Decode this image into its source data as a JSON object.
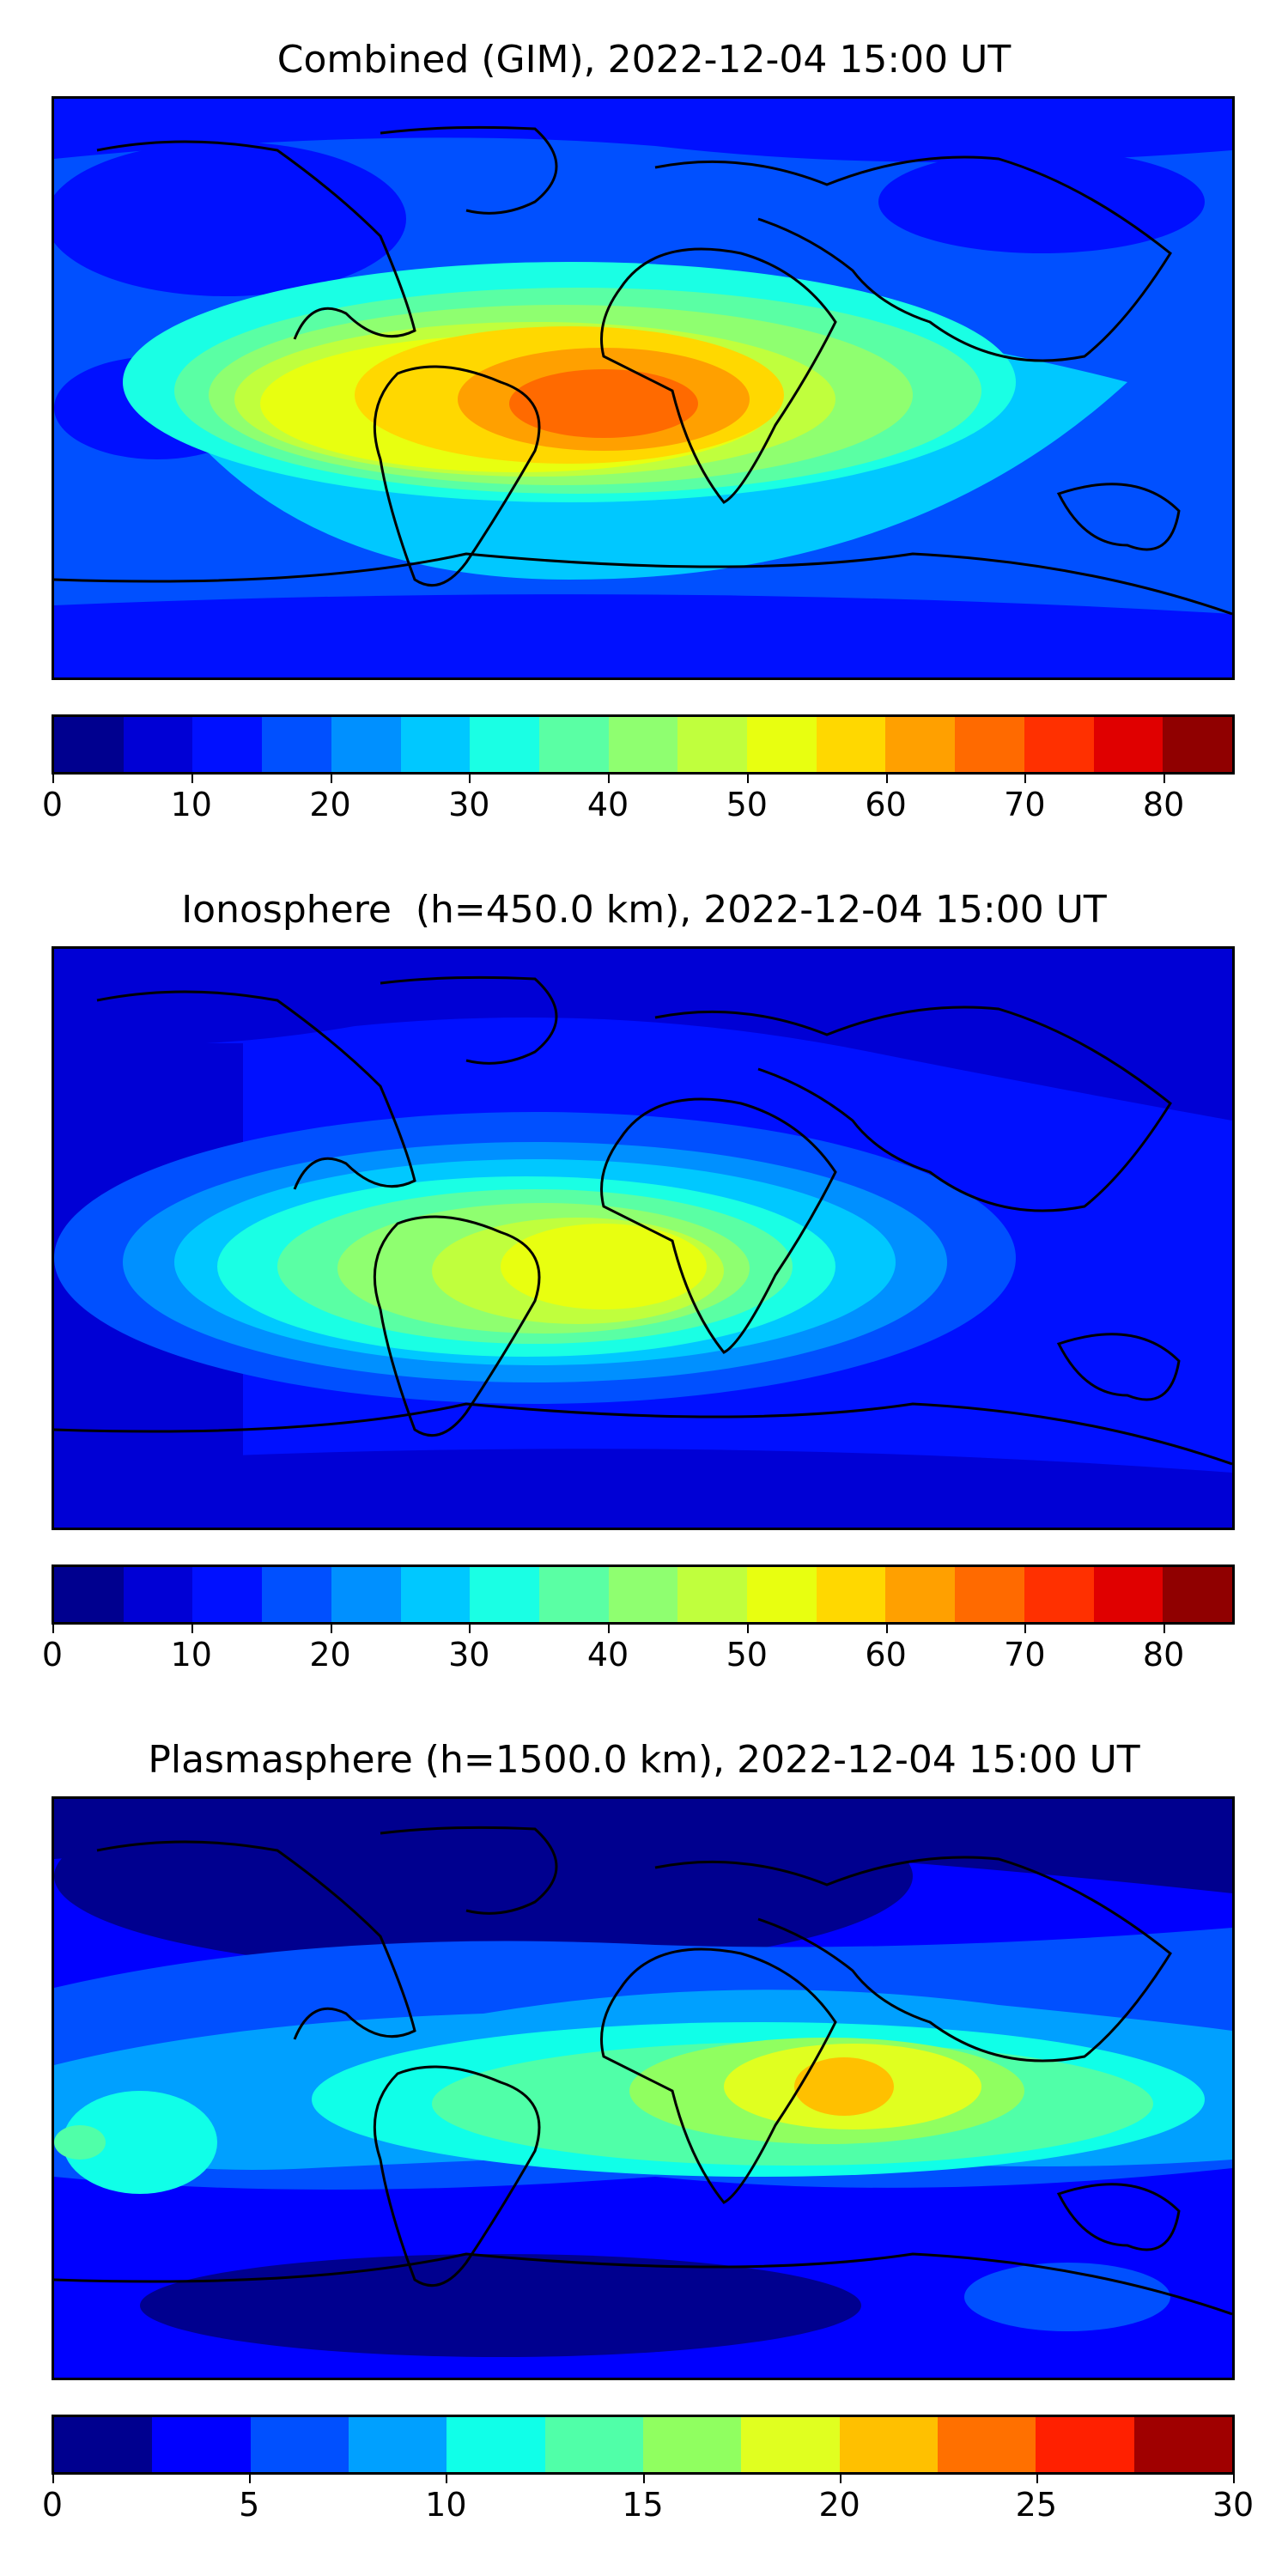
{
  "time_label": "2022-12-04 15:00 UT",
  "panels": [
    {
      "id": "combined",
      "title": "Combined (GIM), 2022-12-04 15:00 UT",
      "colorbar": {
        "min": 0,
        "max": 85,
        "step": 5,
        "ticks": [
          "0",
          "10",
          "20",
          "30",
          "40",
          "50",
          "60",
          "70",
          "80"
        ],
        "colors": [
          "#00008f",
          "#0000d5",
          "#0010ff",
          "#0050ff",
          "#0090ff",
          "#00c8ff",
          "#1affe4",
          "#5affa4",
          "#8fff70",
          "#c0ff3d",
          "#e8ff10",
          "#ffd800",
          "#ffa000",
          "#ff6a00",
          "#ff3000",
          "#e00000",
          "#900000"
        ]
      },
      "features": [
        {
          "label": "background",
          "level": 15
        },
        {
          "label": "low-north-atlantic",
          "level": 5
        },
        {
          "label": "low-north-pacific",
          "level": 10
        },
        {
          "label": "band-equatorial",
          "level": 25
        },
        {
          "label": "south-america-high",
          "level": 45
        },
        {
          "label": "atlantic-peak",
          "level": 60
        },
        {
          "label": "atlantic-core",
          "level": 65
        }
      ]
    },
    {
      "id": "ionosphere",
      "title": "Ionosphere  (h=450.0 km), 2022-12-04 15:00 UT",
      "colorbar": {
        "min": 0,
        "max": 85,
        "step": 5,
        "ticks": [
          "0",
          "10",
          "20",
          "30",
          "40",
          "50",
          "60",
          "70",
          "80"
        ],
        "colors": [
          "#00008f",
          "#0000d5",
          "#0010ff",
          "#0050ff",
          "#0090ff",
          "#00c8ff",
          "#1affe4",
          "#5affa4",
          "#8fff70",
          "#c0ff3d",
          "#e8ff10",
          "#ffd800",
          "#ffa000",
          "#ff6a00",
          "#ff3000",
          "#e00000",
          "#900000"
        ]
      },
      "features": [
        {
          "label": "background",
          "level": 5
        },
        {
          "label": "band-equatorial",
          "level": 20
        },
        {
          "label": "south-atlantic-high",
          "level": 40
        },
        {
          "label": "africa-peak",
          "level": 50
        }
      ]
    },
    {
      "id": "plasmasphere",
      "title": "Plasmasphere (h=1500.0 km), 2022-12-04 15:00 UT",
      "colorbar": {
        "min": 0,
        "max": 30,
        "step": 2.5,
        "ticks": [
          "0",
          "5",
          "10",
          "15",
          "20",
          "25",
          "30"
        ],
        "colors": [
          "#00008f",
          "#0000ff",
          "#0050ff",
          "#00a0ff",
          "#10ffe8",
          "#50ffa8",
          "#90ff60",
          "#e0ff20",
          "#ffc000",
          "#ff7000",
          "#ff2000",
          "#a00000"
        ]
      },
      "features": [
        {
          "label": "background",
          "level": 5
        },
        {
          "label": "band-equatorial",
          "level": 10
        },
        {
          "label": "tropics-high",
          "level": 15
        },
        {
          "label": "indian-ocean-peak",
          "level": 20
        }
      ]
    }
  ]
}
